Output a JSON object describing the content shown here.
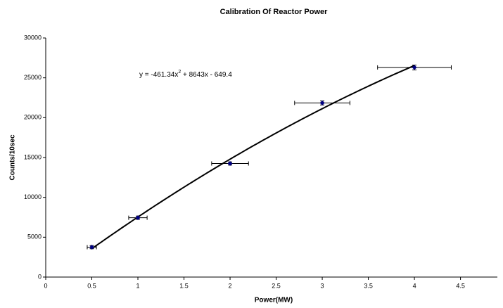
{
  "chart_data": {
    "type": "scatter",
    "title": "Calibration Of Reactor Power",
    "x_label": "Power(MW)",
    "y_label": "Counts/10sec",
    "x": [
      0.5,
      1,
      2,
      3,
      4
    ],
    "values": [
      3750,
      7450,
      14250,
      21850,
      26300
    ],
    "x_error": [
      0.05,
      0.1,
      0.2,
      0.3,
      0.4
    ],
    "y_error": [
      200,
      200,
      200,
      250,
      300
    ],
    "color": "#000080",
    "xlim": [
      0,
      4.9
    ],
    "xticks": [
      0,
      0.5,
      1,
      1.5,
      2,
      2.5,
      3,
      3.5,
      4,
      4.5
    ],
    "ylim": [
      0,
      30000
    ],
    "yticks": [
      0,
      5000,
      10000,
      15000,
      20000,
      25000,
      30000
    ],
    "grid": false,
    "trendline": {
      "coefficients": [
        -461.34,
        8643,
        -649.4
      ],
      "x_range": [
        0.5,
        4
      ],
      "color": "#000000",
      "label": [
        "y = -461.34x",
        "2",
        " + 8643x - 649.4"
      ]
    }
  }
}
